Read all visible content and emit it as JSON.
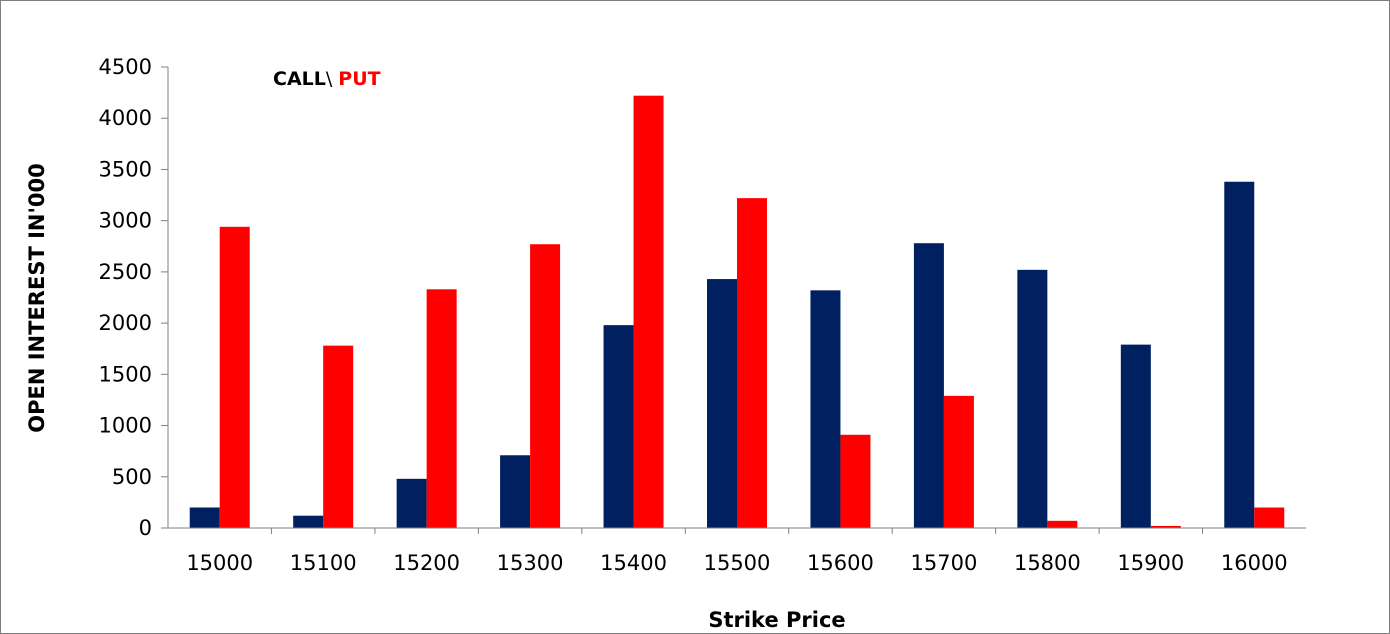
{
  "chart_data": {
    "type": "bar",
    "categories": [
      "15000",
      "15100",
      "15200",
      "15300",
      "15400",
      "15500",
      "15600",
      "15700",
      "15800",
      "15900",
      "16000"
    ],
    "series": [
      {
        "name": "CALL",
        "color": "#002060",
        "values": [
          200,
          120,
          480,
          710,
          1980,
          2430,
          2320,
          2780,
          2520,
          1790,
          3380
        ]
      },
      {
        "name": "PUT",
        "color": "#ff0000",
        "values": [
          2940,
          1780,
          2330,
          2770,
          4220,
          3220,
          910,
          1290,
          70,
          20,
          200
        ]
      }
    ],
    "legend": {
      "call": "CALL",
      "separator": "\\",
      "put": "PUT",
      "placement": "top-left"
    },
    "xlabel": "Strike Price",
    "ylabel": "OPEN INTEREST IN'000",
    "ylim": [
      0,
      4500
    ],
    "yticks": [
      "0",
      "500",
      "1000",
      "1500",
      "2000",
      "2500",
      "3000",
      "3500",
      "4000",
      "4500"
    ],
    "grid": false
  }
}
